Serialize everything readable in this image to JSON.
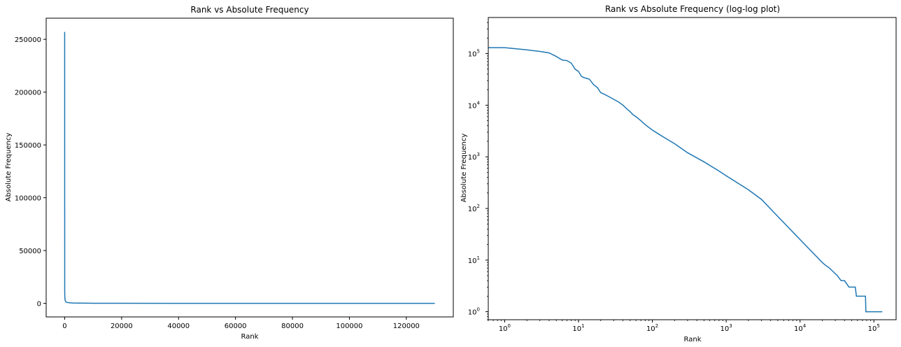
{
  "colors": {
    "line": "#1f77b4",
    "axes": "#000000",
    "background": "#ffffff"
  },
  "chart_data": [
    {
      "type": "line",
      "title": "Rank vs Absolute Frequency",
      "xlabel": "Rank",
      "ylabel": "Absolute Frequency",
      "xscale": "linear",
      "yscale": "linear",
      "xlim": [
        -6500,
        136500
      ],
      "ylim": [
        -12850,
        270000
      ],
      "grid": false,
      "legend": "none",
      "xticks": [
        0,
        20000,
        40000,
        60000,
        80000,
        100000,
        120000
      ],
      "xtick_labels": [
        "0",
        "20000",
        "40000",
        "60000",
        "80000",
        "100000",
        "120000"
      ],
      "yticks": [
        0,
        50000,
        100000,
        150000,
        200000,
        250000
      ],
      "ytick_labels": [
        "0",
        "50000",
        "100000",
        "150000",
        "200000",
        "250000"
      ],
      "series": [
        {
          "x": [
            0,
            10,
            30,
            60,
            100,
            200,
            400,
            700,
            1000,
            2000,
            3000,
            5000,
            10000,
            20000,
            50000,
            100000,
            130000
          ],
          "y": [
            257000,
            12000,
            9000,
            6000,
            4200,
            2600,
            1500,
            1000,
            800,
            500,
            350,
            200,
            80,
            30,
            8,
            2,
            1
          ]
        }
      ]
    },
    {
      "type": "line",
      "title": "Rank vs Absolute Frequency (log-log plot)",
      "xlabel": "Rank",
      "ylabel": "Absolute Frequency",
      "xscale": "log",
      "yscale": "log",
      "xlim": [
        0.6,
        200000
      ],
      "ylim": [
        0.7,
        500000
      ],
      "grid": false,
      "legend": "none",
      "xticks": [
        1,
        10,
        100,
        1000,
        10000,
        100000
      ],
      "xtick_labels": [
        [
          "10",
          "0"
        ],
        [
          "10",
          "1"
        ],
        [
          "10",
          "2"
        ],
        [
          "10",
          "3"
        ],
        [
          "10",
          "4"
        ],
        [
          "10",
          "5"
        ]
      ],
      "yticks": [
        1,
        10,
        100,
        1000,
        10000,
        100000
      ],
      "ytick_labels": [
        [
          "10",
          "0"
        ],
        [
          "10",
          "1"
        ],
        [
          "10",
          "2"
        ],
        [
          "10",
          "3"
        ],
        [
          "10",
          "4"
        ],
        [
          "10",
          "5"
        ]
      ],
      "series": [
        {
          "x": [
            0.6,
            1,
            2,
            3,
            4,
            5,
            6,
            7,
            8,
            9,
            10,
            11,
            12,
            14,
            16,
            18,
            20,
            22,
            25,
            30,
            35,
            40,
            45,
            50,
            55,
            60,
            70,
            80,
            100,
            120,
            150,
            200,
            300,
            500,
            800,
            1000,
            2000,
            3000,
            5000,
            10000,
            20000,
            22000,
            25000,
            28000,
            32000,
            36000,
            40000,
            46000,
            56000,
            58000,
            77000,
            78000,
            130000
          ],
          "y": [
            130000,
            130000,
            118000,
            110000,
            103000,
            88000,
            75000,
            73000,
            65000,
            50000,
            45000,
            36000,
            34000,
            32000,
            25000,
            22000,
            17500,
            16500,
            15000,
            13000,
            11500,
            10000,
            8500,
            7500,
            6500,
            6000,
            5000,
            4200,
            3300,
            2800,
            2300,
            1800,
            1200,
            800,
            530,
            430,
            230,
            150,
            70,
            25,
            9,
            8,
            7,
            6,
            5,
            4,
            4,
            3,
            3,
            2,
            2,
            1,
            1
          ]
        }
      ]
    }
  ]
}
